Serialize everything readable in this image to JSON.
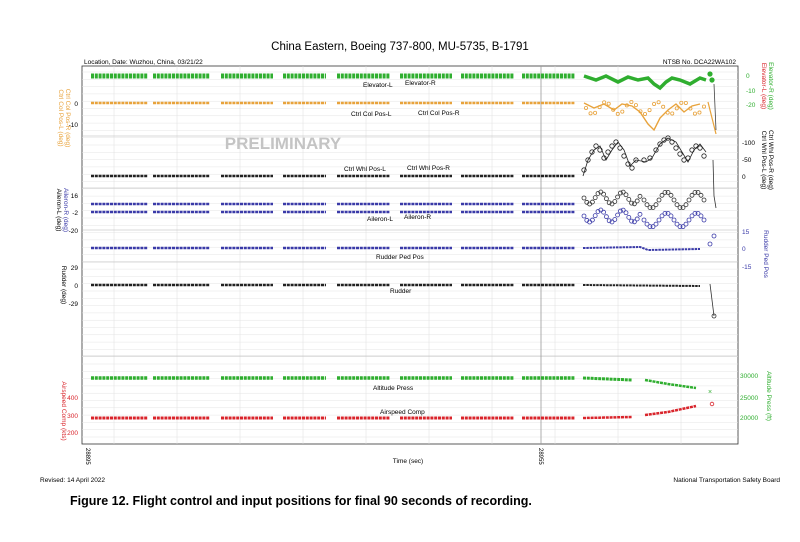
{
  "chart_data": {
    "type": "line",
    "title": "China Eastern, Boeing 737-800, MU-5735, B-1791",
    "location_date": "Location, Date: Wuzhou, China, 03/21/22",
    "ntsb_no": "NTSB No. DCA22WA102",
    "watermark": "PRELIMINARY",
    "xlabel": "Time (sec)",
    "x_ticks": [
      "28895",
      "28955"
    ],
    "revised": "Revised: 14 April 2022",
    "agency": "National Transportation Safety Board",
    "grid": true,
    "panels": [
      {
        "id": "elevator",
        "left_axis_label": "Ctrl Col Pos-L (deg)",
        "left_axis_label2": "Ctrl Col Pos-R (deg)",
        "left_ticks": [
          "0",
          "-10"
        ],
        "right_axis_label": "Elevator-L (deg)",
        "right_axis_label2": "Elevator-R (deg)",
        "right_ticks": [
          "0",
          "-10",
          "-20"
        ],
        "series": [
          {
            "name": "Elevator-L",
            "color": "#d9242b"
          },
          {
            "name": "Elevator-R",
            "color": "#2fae2f"
          },
          {
            "name": "Ctrl Col Pos-L",
            "color": "#e8a33c"
          },
          {
            "name": "Ctrl Col Pos-R",
            "color": "#e8a33c"
          }
        ]
      },
      {
        "id": "wheel",
        "right_axis_label": "Ctrl Whl Pos-L (deg)",
        "right_axis_label2": "Ctrl Whl Pos-R (deg)",
        "right_ticks": [
          "-100",
          "-50",
          "0"
        ],
        "series": [
          {
            "name": "Ctrl Whl Pos-L",
            "color": "#222222"
          },
          {
            "name": "Ctrl Whl Pos-R",
            "color": "#222222"
          }
        ]
      },
      {
        "id": "aileron",
        "left_axis_label": "Aileron-L (deg)",
        "left_axis_label2": "Aileron-R (deg)",
        "left_ticks": [
          "16",
          "-2",
          "-20"
        ],
        "series": [
          {
            "name": "Aileron-L",
            "color": "#3a3aa8"
          },
          {
            "name": "Aileron-R",
            "color": "#3a3aa8"
          }
        ]
      },
      {
        "id": "rudder_pedal",
        "right_axis_label": "Rudder Ped Pos",
        "right_ticks": [
          "15",
          "0",
          "-15"
        ],
        "series": [
          {
            "name": "Rudder Ped Pos",
            "color": "#3a3aa8"
          }
        ]
      },
      {
        "id": "rudder",
        "left_axis_label": "Rudder (deg)",
        "left_ticks": [
          "29",
          "0",
          "-29"
        ],
        "series": [
          {
            "name": "Rudder",
            "color": "#222222"
          }
        ]
      },
      {
        "id": "altitude_airspeed",
        "left_axis_label": "Airspeed Comp (kts)",
        "left_ticks": [
          "400",
          "300",
          "200"
        ],
        "right_axis_label": "Altitude Press (ft)",
        "right_ticks": [
          "30000",
          "25000",
          "20000"
        ],
        "series": [
          {
            "name": "Altitude Press",
            "color": "#2fae2f"
          },
          {
            "name": "Airspeed Comp",
            "color": "#d9242b"
          }
        ]
      }
    ]
  },
  "caption": "Figure 12. Flight control and input positions for final 90 seconds of recording."
}
